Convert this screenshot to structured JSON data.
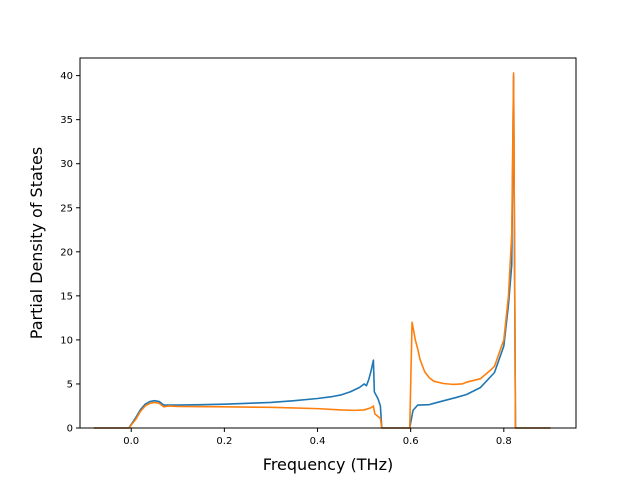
{
  "chart_data": {
    "type": "line",
    "title": "",
    "xlabel": "Frequency (THz)",
    "ylabel": "Partial Density of States",
    "xlim": [
      -0.11,
      0.955
    ],
    "ylim": [
      0,
      42
    ],
    "grid": false,
    "legend": "none",
    "x_ticks": [
      0.0,
      0.2,
      0.4,
      0.6,
      0.8
    ],
    "x_tick_labels": [
      "0.0",
      "0.2",
      "0.4",
      "0.6",
      "0.8"
    ],
    "y_ticks": [
      0,
      5,
      10,
      15,
      20,
      25,
      30,
      35,
      40
    ],
    "y_tick_labels": [
      "0",
      "5",
      "10",
      "15",
      "20",
      "25",
      "30",
      "35",
      "40"
    ],
    "series": [
      {
        "color": "#1f77b4",
        "points": [
          [
            -0.08,
            0
          ],
          [
            -0.005,
            0
          ],
          [
            0.01,
            1.2
          ],
          [
            0.02,
            2.1
          ],
          [
            0.03,
            2.7
          ],
          [
            0.04,
            3.0
          ],
          [
            0.05,
            3.1
          ],
          [
            0.06,
            3.0
          ],
          [
            0.07,
            2.6
          ],
          [
            0.08,
            2.6
          ],
          [
            0.1,
            2.6
          ],
          [
            0.15,
            2.65
          ],
          [
            0.2,
            2.7
          ],
          [
            0.25,
            2.8
          ],
          [
            0.3,
            2.9
          ],
          [
            0.35,
            3.1
          ],
          [
            0.4,
            3.35
          ],
          [
            0.43,
            3.55
          ],
          [
            0.45,
            3.75
          ],
          [
            0.47,
            4.1
          ],
          [
            0.49,
            4.6
          ],
          [
            0.5,
            5.0
          ],
          [
            0.505,
            4.8
          ],
          [
            0.51,
            5.5
          ],
          [
            0.515,
            6.5
          ],
          [
            0.52,
            7.7
          ],
          [
            0.522,
            4.1
          ],
          [
            0.53,
            3.3
          ],
          [
            0.535,
            2.5
          ],
          [
            0.538,
            0
          ],
          [
            0.598,
            0
          ],
          [
            0.605,
            2.0
          ],
          [
            0.61,
            2.3
          ],
          [
            0.615,
            2.6
          ],
          [
            0.64,
            2.65
          ],
          [
            0.65,
            2.8
          ],
          [
            0.7,
            3.5
          ],
          [
            0.72,
            3.8
          ],
          [
            0.75,
            4.6
          ],
          [
            0.78,
            6.3
          ],
          [
            0.8,
            9.3
          ],
          [
            0.81,
            14.0
          ],
          [
            0.817,
            18.5
          ],
          [
            0.821,
            40.0
          ],
          [
            0.825,
            0
          ],
          [
            0.9,
            0
          ]
        ]
      },
      {
        "color": "#ff7f0e",
        "points": [
          [
            -0.08,
            0
          ],
          [
            -0.005,
            0
          ],
          [
            0.01,
            1.0
          ],
          [
            0.02,
            1.9
          ],
          [
            0.03,
            2.5
          ],
          [
            0.04,
            2.8
          ],
          [
            0.05,
            2.9
          ],
          [
            0.06,
            2.8
          ],
          [
            0.07,
            2.4
          ],
          [
            0.08,
            2.5
          ],
          [
            0.1,
            2.45
          ],
          [
            0.2,
            2.4
          ],
          [
            0.3,
            2.35
          ],
          [
            0.4,
            2.2
          ],
          [
            0.45,
            2.05
          ],
          [
            0.48,
            2.0
          ],
          [
            0.5,
            2.05
          ],
          [
            0.515,
            2.3
          ],
          [
            0.52,
            2.5
          ],
          [
            0.523,
            1.6
          ],
          [
            0.53,
            1.3
          ],
          [
            0.535,
            1.1
          ],
          [
            0.538,
            0
          ],
          [
            0.598,
            0
          ],
          [
            0.603,
            12.0
          ],
          [
            0.61,
            10.0
          ],
          [
            0.615,
            9.0
          ],
          [
            0.62,
            7.8
          ],
          [
            0.63,
            6.4
          ],
          [
            0.64,
            5.7
          ],
          [
            0.65,
            5.3
          ],
          [
            0.67,
            5.05
          ],
          [
            0.69,
            4.95
          ],
          [
            0.71,
            5.0
          ],
          [
            0.72,
            5.2
          ],
          [
            0.75,
            5.6
          ],
          [
            0.77,
            6.5
          ],
          [
            0.78,
            7.0
          ],
          [
            0.79,
            8.5
          ],
          [
            0.8,
            10.0
          ],
          [
            0.81,
            15.0
          ],
          [
            0.817,
            22.0
          ],
          [
            0.821,
            40.3
          ],
          [
            0.825,
            0
          ],
          [
            0.9,
            0
          ]
        ]
      }
    ]
  }
}
